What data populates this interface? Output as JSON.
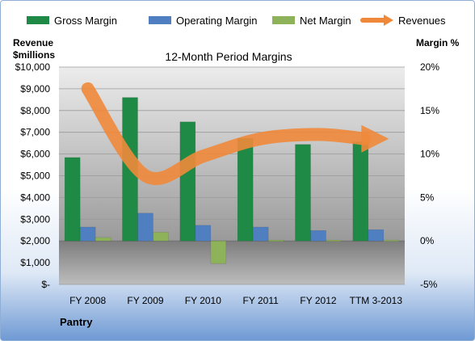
{
  "chart_data": {
    "type": "bar",
    "title": "12-Month Period Margins",
    "categories": [
      "FY 2008",
      "FY 2009",
      "FY 2010",
      "FY 2011",
      "FY 2012",
      "TTM 3-2013"
    ],
    "series": [
      {
        "name": "Gross Margin",
        "axis": "right",
        "color": "#1e8a45",
        "values": [
          9.6,
          16.5,
          13.7,
          11.8,
          11.1,
          11.4
        ]
      },
      {
        "name": "Operating Margin",
        "axis": "right",
        "color": "#4f7fc0",
        "values": [
          1.6,
          3.2,
          1.8,
          1.6,
          1.2,
          1.3
        ]
      },
      {
        "name": "Net Margin",
        "axis": "right",
        "color": "#8db25a",
        "values": [
          0.4,
          1.0,
          -2.6,
          0.1,
          0.1,
          0.1
        ]
      },
      {
        "name": "Revenues",
        "axis": "left",
        "color": "#f0883a",
        "values": [
          9000,
          5000,
          5900,
          6700,
          6900,
          6700
        ]
      }
    ],
    "y_left": {
      "label_line1": "Revenue",
      "label_line2": "$millions",
      "ylim": [
        0,
        10000
      ],
      "ticks": [
        "$10,000",
        "$9,000",
        "$8,000",
        "$7,000",
        "$6,000",
        "$5,000",
        "$4,000",
        "$3,000",
        "$2,000",
        "$1,000",
        "$-"
      ]
    },
    "y_right": {
      "label": "Margin %",
      "ylim": [
        -5,
        20
      ],
      "ticks": [
        "20%",
        "15%",
        "10%",
        "5%",
        "0%",
        "-5%"
      ]
    },
    "legend": {
      "position": "top"
    },
    "grid": true
  },
  "footer": {
    "company": "Pantry"
  }
}
